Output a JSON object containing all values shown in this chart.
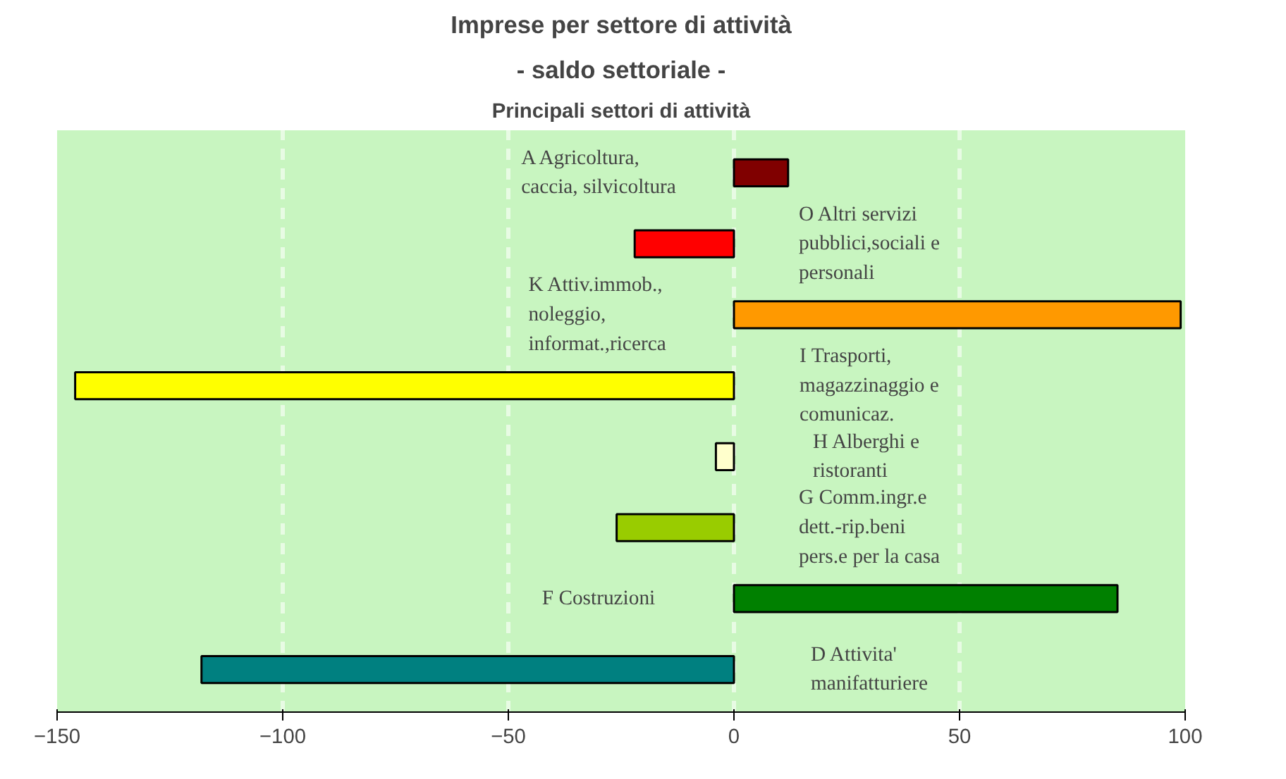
{
  "chart_data": {
    "type": "bar",
    "orientation": "horizontal",
    "title": "Imprese per settore di attività",
    "subtitle": "- saldo settoriale -",
    "annotations": [
      "Principali settori di attività"
    ],
    "categories": [
      "A  Agricoltura, caccia, silvicoltura",
      "O  Altri servizi pubblici,sociali e personali",
      "K  Attiv.immob., noleggio, informat.,ricerca",
      "I Trasporti, magazzinaggio e comunicaz.",
      "H  Alberghi e ristoranti",
      "G  Comm.ingr.e dett.-rip.beni pers.e per la casa",
      "F Costruzioni",
      "D Attivita' manifatturiere"
    ],
    "values": [
      12,
      -22,
      99,
      -146,
      -4,
      -26,
      85,
      -118
    ],
    "colors": [
      "#800000",
      "#ff0000",
      "#ff9900",
      "#ffff00",
      "#ffffcc",
      "#99cc00",
      "#008000",
      "#008080"
    ],
    "xlim": [
      -150,
      100
    ],
    "xticks": [
      -150,
      -100,
      -50,
      0,
      50,
      100
    ],
    "grid": "x",
    "tick_labels": "x"
  }
}
